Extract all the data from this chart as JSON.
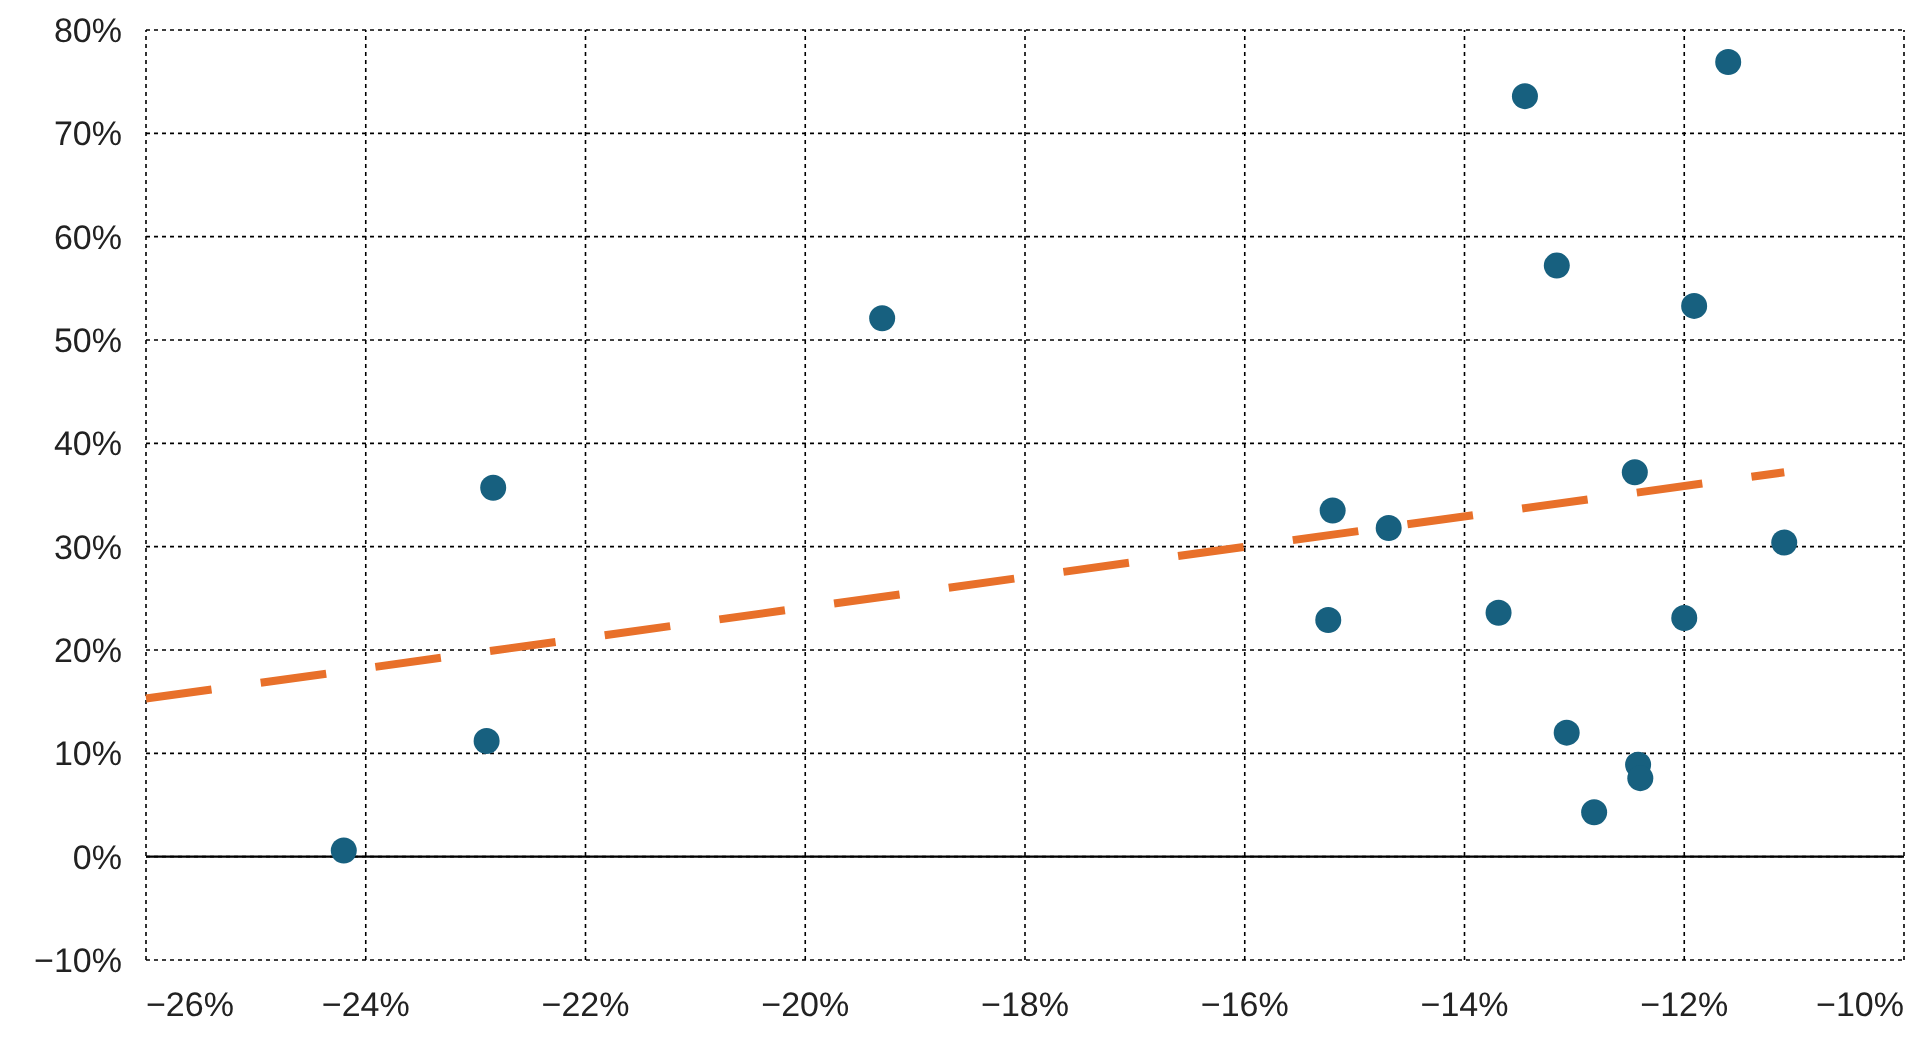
{
  "chart_data": {
    "type": "scatter",
    "grid": true,
    "marker": "circle",
    "xlim": [
      -26,
      -10
    ],
    "ylim": [
      -10,
      80
    ],
    "xticks": [
      {
        "value": -26,
        "label": "−26%"
      },
      {
        "value": -24,
        "label": "−24%"
      },
      {
        "value": -22,
        "label": "−22%"
      },
      {
        "value": -20,
        "label": "−20%"
      },
      {
        "value": -18,
        "label": "−18%"
      },
      {
        "value": -16,
        "label": "−16%"
      },
      {
        "value": -14,
        "label": "−14%"
      },
      {
        "value": -12,
        "label": "−12%"
      },
      {
        "value": -10,
        "label": "−10%"
      }
    ],
    "yticks": [
      {
        "value": -10,
        "label": "−10%"
      },
      {
        "value": 0,
        "label": "0%"
      },
      {
        "value": 10,
        "label": "10%"
      },
      {
        "value": 20,
        "label": "20%"
      },
      {
        "value": 30,
        "label": "30%"
      },
      {
        "value": 40,
        "label": "40%"
      },
      {
        "value": 50,
        "label": "50%"
      },
      {
        "value": 60,
        "label": "60%"
      },
      {
        "value": 70,
        "label": "70%"
      },
      {
        "value": 80,
        "label": "80%"
      }
    ],
    "ref_lines": [
      {
        "axis": "y",
        "value": 0,
        "color": "#000000",
        "line_style": "solid"
      }
    ],
    "series": [
      {
        "type": "scatter",
        "color": "#17607f",
        "x": [
          -24.2,
          -22.84,
          -22.9,
          -19.3,
          -15.2,
          -15.24,
          -14.69,
          -13.69,
          -13.45,
          -13.16,
          -13.07,
          -12.82,
          -12.45,
          -12.42,
          -12.4,
          -12.0,
          -11.91,
          -11.6,
          -11.09
        ],
        "values": [
          0.6,
          35.7,
          11.2,
          52.1,
          33.5,
          22.9,
          31.8,
          23.6,
          73.6,
          57.2,
          12.0,
          4.3,
          37.2,
          8.9,
          7.6,
          23.1,
          53.3,
          76.9,
          30.4
        ]
      },
      {
        "type": "line",
        "color": "#e8702a",
        "line_style": "dashed",
        "marker": "none",
        "x": [
          -26,
          -11.09
        ],
        "values": [
          15.3,
          37.2
        ]
      }
    ]
  }
}
